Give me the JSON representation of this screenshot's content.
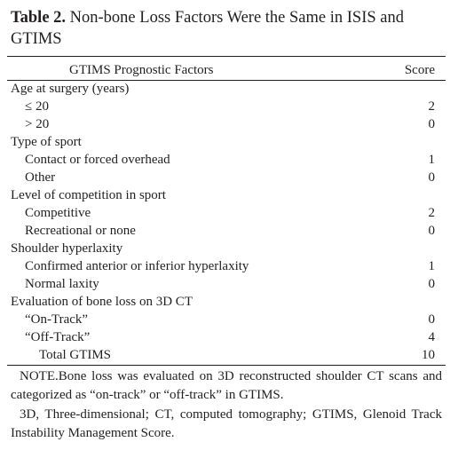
{
  "title": {
    "label": "Table 2.",
    "text": "Non-bone Loss Factors Were the Same in ISIS and GTIMS"
  },
  "table": {
    "header": [
      "GTIMS Prognostic Factors",
      "Score"
    ],
    "groups": [
      {
        "heading": "Age at surgery (years)",
        "items": [
          {
            "label": "≤ 20",
            "score": 2
          },
          {
            "label": "> 20",
            "score": 0
          }
        ]
      },
      {
        "heading": "Type of sport",
        "items": [
          {
            "label": "Contact or forced overhead",
            "score": 1
          },
          {
            "label": "Other",
            "score": 0
          }
        ]
      },
      {
        "heading": "Level of competition in sport",
        "items": [
          {
            "label": "Competitive",
            "score": 2
          },
          {
            "label": "Recreational or none",
            "score": 0
          }
        ]
      },
      {
        "heading": "Shoulder hyperlaxity",
        "items": [
          {
            "label": "Confirmed anterior or inferior hyperlaxity",
            "score": 1
          },
          {
            "label": "Normal laxity",
            "score": 0
          }
        ]
      },
      {
        "heading": "Evaluation of bone loss on 3D CT",
        "items": [
          {
            "label": "“On-Track”",
            "score": 0
          },
          {
            "label": "“Off-Track”",
            "score": 4
          }
        ]
      }
    ],
    "total": {
      "label": "Total GTIMS",
      "score": 10
    }
  },
  "notes": [
    "NOTE.Bone loss was evaluated on 3D reconstructed shoulder CT scans and categorized as “on-track” or “off-track” in GTIMS.",
    "3D, Three-dimensional; CT, computed tomography; GTIMS, Glenoid Track Instability Management Score."
  ]
}
